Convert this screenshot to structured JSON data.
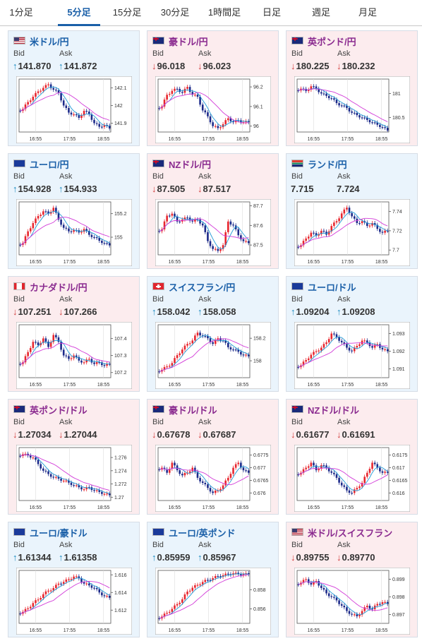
{
  "tabs": [
    {
      "label": "1分足",
      "active": false
    },
    {
      "label": "5分足",
      "active": true
    },
    {
      "label": "15分足",
      "active": false
    },
    {
      "label": "30分足",
      "active": false
    },
    {
      "label": "1時間足",
      "active": false
    },
    {
      "label": "日足",
      "active": false
    },
    {
      "label": "週足",
      "active": false
    },
    {
      "label": "月足",
      "active": false
    }
  ],
  "labels": {
    "bid": "Bid",
    "ask": "Ask"
  },
  "colors": {
    "up": "#1a8ac0",
    "down": "#d23b3b",
    "candle_up": "#e8262e",
    "candle_down": "#1c2a8a",
    "ma_short": "#1f9ad6",
    "ma_long": "#d23ad8"
  },
  "cards": [
    {
      "pair": "米ドル/円",
      "direction": "up",
      "flag": "us-flag-icon",
      "bid": "141.870",
      "ask": "141.872",
      "chart_data": {
        "type": "candlestick",
        "x_ticks": [
          "16:55",
          "17:55",
          "18:55"
        ],
        "y_ticks": [
          "142.1",
          "142",
          "141.9"
        ],
        "ylim": [
          141.85,
          142.15
        ],
        "closes": [
          141.98,
          142.02,
          142.05,
          142.08,
          142.1,
          142.12,
          142.09,
          142.07,
          142.0,
          141.96,
          141.95,
          141.93,
          141.97,
          141.95,
          141.9,
          141.88,
          141.89,
          141.87
        ]
      }
    },
    {
      "pair": "豪ドル/円",
      "direction": "down",
      "flag": "au-flag-icon",
      "bid": "96.018",
      "ask": "96.023",
      "chart_data": {
        "type": "candlestick",
        "x_ticks": [
          "16:55",
          "17:55",
          "18:55"
        ],
        "y_ticks": [
          "96.2",
          "96.1",
          "96"
        ],
        "ylim": [
          95.97,
          96.24
        ],
        "closes": [
          96.1,
          96.16,
          96.18,
          96.19,
          96.17,
          96.2,
          96.16,
          96.15,
          96.08,
          96.05,
          96.0,
          95.99,
          96.01,
          96.04,
          96.02,
          96.03,
          96.02,
          96.02
        ]
      }
    },
    {
      "pair": "英ポンド/円",
      "direction": "down",
      "flag": "gb-flag-icon",
      "bid": "180.225",
      "ask": "180.232",
      "chart_data": {
        "type": "candlestick",
        "x_ticks": [
          "16:55",
          "17:55",
          "18:55"
        ],
        "y_ticks": [
          "181",
          "180.5"
        ],
        "ylim": [
          180.2,
          181.3
        ],
        "closes": [
          181.1,
          181.05,
          181.15,
          181.1,
          181.0,
          180.95,
          180.9,
          180.8,
          180.75,
          180.7,
          180.6,
          180.55,
          180.5,
          180.45,
          180.4,
          180.35,
          180.3,
          180.23
        ]
      }
    },
    {
      "pair": "ユーロ/円",
      "direction": "up",
      "flag": "eu-flag-icon",
      "bid": "154.928",
      "ask": "154.933",
      "chart_data": {
        "type": "candlestick",
        "x_ticks": [
          "16:55",
          "17:55",
          "18:55"
        ],
        "y_ticks": [
          "155.2",
          "155"
        ],
        "ylim": [
          154.85,
          155.3
        ],
        "closes": [
          154.95,
          155.05,
          155.12,
          155.18,
          155.22,
          155.2,
          155.25,
          155.15,
          155.08,
          155.05,
          155.06,
          155.04,
          155.07,
          155.02,
          155.0,
          154.97,
          154.95,
          154.93
        ]
      }
    },
    {
      "pair": "NZドル/円",
      "direction": "down",
      "flag": "nz-flag-icon",
      "bid": "87.505",
      "ask": "87.517",
      "chart_data": {
        "type": "candlestick",
        "x_ticks": [
          "16:55",
          "17:55",
          "18:55"
        ],
        "y_ticks": [
          "87.7",
          "87.6",
          "87.5"
        ],
        "ylim": [
          87.45,
          87.72
        ],
        "closes": [
          87.58,
          87.65,
          87.66,
          87.62,
          87.63,
          87.64,
          87.62,
          87.63,
          87.6,
          87.52,
          87.48,
          87.47,
          87.5,
          87.62,
          87.6,
          87.55,
          87.52,
          87.51
        ]
      }
    },
    {
      "pair": "ランド/円",
      "direction": "flat",
      "flag": "za-flag-icon",
      "bid": "7.715",
      "ask": "7.724",
      "chart_data": {
        "type": "candlestick",
        "x_ticks": [
          "16:55",
          "17:55",
          "18:55"
        ],
        "y_ticks": [
          "7.74",
          "7.72",
          "7.7"
        ],
        "ylim": [
          7.695,
          7.75
        ],
        "closes": [
          7.705,
          7.712,
          7.718,
          7.715,
          7.72,
          7.716,
          7.725,
          7.73,
          7.738,
          7.744,
          7.735,
          7.728,
          7.73,
          7.725,
          7.728,
          7.722,
          7.718,
          7.72
        ]
      }
    },
    {
      "pair": "カナダドル/円",
      "direction": "down",
      "flag": "ca-flag-icon",
      "bid": "107.251",
      "ask": "107.266",
      "chart_data": {
        "type": "candlestick",
        "x_ticks": [
          "16:55",
          "17:55",
          "18:55"
        ],
        "y_ticks": [
          "107.4",
          "107.3",
          "107.2"
        ],
        "ylim": [
          107.17,
          107.48
        ],
        "closes": [
          107.26,
          107.32,
          107.38,
          107.36,
          107.4,
          107.35,
          107.42,
          107.38,
          107.3,
          107.28,
          107.3,
          107.27,
          107.26,
          107.28,
          107.25,
          107.26,
          107.24,
          107.25
        ]
      }
    },
    {
      "pair": "スイスフラン/円",
      "direction": "up",
      "flag": "ch-flag-icon",
      "bid": "158.042",
      "ask": "158.058",
      "chart_data": {
        "type": "candlestick",
        "x_ticks": [
          "16:55",
          "17:55",
          "18:55"
        ],
        "y_ticks": [
          "158.2",
          "158"
        ],
        "ylim": [
          157.85,
          158.32
        ],
        "closes": [
          157.92,
          157.95,
          157.98,
          158.05,
          158.1,
          158.15,
          158.18,
          158.25,
          158.22,
          158.2,
          158.15,
          158.2,
          158.18,
          158.12,
          158.1,
          158.08,
          158.05,
          158.04
        ]
      }
    },
    {
      "pair": "ユーロ/ドル",
      "direction": "up",
      "flag": "eu-us-flag-icon",
      "bid": "1.09204",
      "ask": "1.09208",
      "chart_data": {
        "type": "candlestick",
        "x_ticks": [
          "16:55",
          "17:55",
          "18:55"
        ],
        "y_ticks": [
          "1.093",
          "1.092",
          "1.091"
        ],
        "ylim": [
          1.0905,
          1.0935
        ],
        "closes": [
          1.0912,
          1.0915,
          1.0918,
          1.092,
          1.0922,
          1.0925,
          1.093,
          1.0928,
          1.0925,
          1.0922,
          1.092,
          1.0923,
          1.0926,
          1.0925,
          1.0922,
          1.0924,
          1.0921,
          1.092
        ]
      }
    },
    {
      "pair": "英ポンド/ドル",
      "direction": "down",
      "flag": "gb-us-flag-icon",
      "bid": "1.27034",
      "ask": "1.27044",
      "chart_data": {
        "type": "candlestick",
        "x_ticks": [
          "16:55",
          "17:55",
          "18:55"
        ],
        "y_ticks": [
          "1.276",
          "1.274",
          "1.272",
          "1.27"
        ],
        "ylim": [
          1.2695,
          1.2775
        ],
        "closes": [
          1.2765,
          1.2763,
          1.276,
          1.275,
          1.274,
          1.2735,
          1.273,
          1.2728,
          1.2725,
          1.2722,
          1.2718,
          1.2715,
          1.2712,
          1.2715,
          1.271,
          1.2708,
          1.2705,
          1.2703
        ]
      }
    },
    {
      "pair": "豪ドル/ドル",
      "direction": "down",
      "flag": "au-us-flag-icon",
      "bid": "0.67678",
      "ask": "0.67687",
      "chart_data": {
        "type": "candlestick",
        "x_ticks": [
          "16:55",
          "17:55",
          "18:55"
        ],
        "y_ticks": [
          "0.6775",
          "0.677",
          "0.6765",
          "0.676"
        ],
        "ylim": [
          0.6757,
          0.6778
        ],
        "closes": [
          0.677,
          0.6768,
          0.6772,
          0.6769,
          0.6767,
          0.6768,
          0.677,
          0.6766,
          0.6764,
          0.6762,
          0.676,
          0.6761,
          0.6763,
          0.6766,
          0.677,
          0.6772,
          0.6769,
          0.6768
        ]
      }
    },
    {
      "pair": "NZドル/ドル",
      "direction": "down",
      "flag": "nz-us-flag-icon",
      "bid": "0.61677",
      "ask": "0.61691",
      "chart_data": {
        "type": "candlestick",
        "x_ticks": [
          "16:55",
          "17:55",
          "18:55"
        ],
        "y_ticks": [
          "0.6175",
          "0.617",
          "0.6165",
          "0.616"
        ],
        "ylim": [
          0.6157,
          0.6178
        ],
        "closes": [
          0.6168,
          0.617,
          0.6172,
          0.6169,
          0.6171,
          0.617,
          0.6168,
          0.6166,
          0.6163,
          0.6161,
          0.616,
          0.6162,
          0.6164,
          0.6168,
          0.6172,
          0.617,
          0.6168,
          0.6168
        ]
      }
    },
    {
      "pair": "ユーロ/豪ドル",
      "direction": "up",
      "flag": "eu-au-flag-icon",
      "bid": "1.61344",
      "ask": "1.61358",
      "chart_data": {
        "type": "candlestick",
        "x_ticks": [
          "16:55",
          "17:55",
          "18:55"
        ],
        "y_ticks": [
          "1.616",
          "1.614",
          "1.612"
        ],
        "ylim": [
          1.6105,
          1.6165
        ],
        "closes": [
          1.6118,
          1.6122,
          1.6128,
          1.6132,
          1.6138,
          1.6142,
          1.6145,
          1.615,
          1.6152,
          1.6155,
          1.6158,
          1.6156,
          1.615,
          1.6148,
          1.6145,
          1.614,
          1.6136,
          1.6134
        ]
      }
    },
    {
      "pair": "ユーロ/英ポンド",
      "direction": "up",
      "flag": "eu-gb-flag-icon",
      "bid": "0.85959",
      "ask": "0.85967",
      "chart_data": {
        "type": "candlestick",
        "x_ticks": [
          "16:55",
          "17:55",
          "18:55"
        ],
        "y_ticks": [
          "0.858",
          "0.856"
        ],
        "ylim": [
          0.8545,
          0.86
        ],
        "closes": [
          0.8552,
          0.8556,
          0.856,
          0.8565,
          0.857,
          0.8578,
          0.8582,
          0.8585,
          0.8588,
          0.859,
          0.8592,
          0.8594,
          0.8595,
          0.8596,
          0.8597,
          0.8596,
          0.8596,
          0.8596
        ]
      }
    },
    {
      "pair": "米ドル/スイスフラン",
      "direction": "down",
      "flag": "us-ch-flag-icon",
      "bid": "0.89755",
      "ask": "0.89770",
      "chart_data": {
        "type": "candlestick",
        "x_ticks": [
          "16:55",
          "17:55",
          "18:55"
        ],
        "y_ticks": [
          "0.899",
          "0.898",
          "0.897"
        ],
        "ylim": [
          0.8965,
          0.8995
        ],
        "closes": [
          0.8988,
          0.899,
          0.8987,
          0.8989,
          0.8985,
          0.8982,
          0.898,
          0.8978,
          0.8975,
          0.8972,
          0.897,
          0.8969,
          0.8972,
          0.8975,
          0.8973,
          0.8976,
          0.8977,
          0.8976
        ]
      }
    }
  ]
}
